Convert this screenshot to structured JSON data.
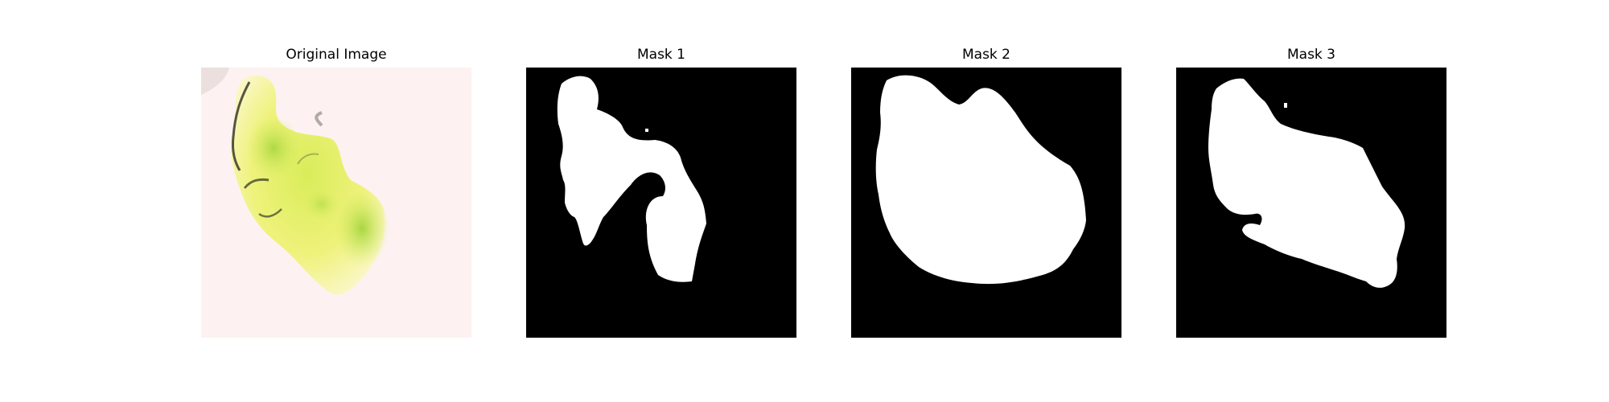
{
  "figure": {
    "panels": [
      {
        "title": "Original Image",
        "kind": "photo",
        "background": "#fdf2f1"
      },
      {
        "title": "Mask 1",
        "kind": "mask",
        "background": "#000000",
        "foreground": "#ffffff"
      },
      {
        "title": "Mask 2",
        "kind": "mask",
        "background": "#000000",
        "foreground": "#ffffff"
      },
      {
        "title": "Mask 3",
        "kind": "mask",
        "background": "#000000",
        "foreground": "#ffffff"
      }
    ]
  }
}
